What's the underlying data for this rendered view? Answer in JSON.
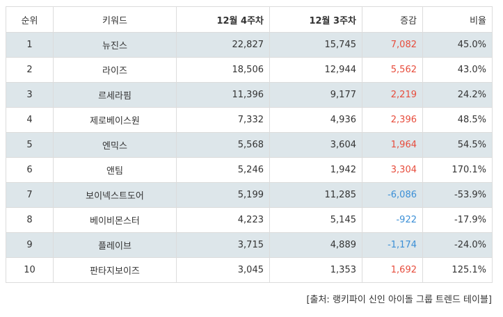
{
  "table": {
    "headers": {
      "rank": "순위",
      "keyword": "키워드",
      "week4": "12월 4주차",
      "week3": "12월 3주차",
      "change": "증감",
      "ratio": "비율"
    },
    "rows": [
      {
        "rank": "1",
        "keyword": "뉴진스",
        "week4": "22,827",
        "week3": "15,745",
        "change": "7,082",
        "ratio": "45.0%",
        "direction": "up"
      },
      {
        "rank": "2",
        "keyword": "라이즈",
        "week4": "18,506",
        "week3": "12,944",
        "change": "5,562",
        "ratio": "43.0%",
        "direction": "up"
      },
      {
        "rank": "3",
        "keyword": "르세라핌",
        "week4": "11,396",
        "week3": "9,177",
        "change": "2,219",
        "ratio": "24.2%",
        "direction": "up"
      },
      {
        "rank": "4",
        "keyword": "제로베이스원",
        "week4": "7,332",
        "week3": "4,936",
        "change": "2,396",
        "ratio": "48.5%",
        "direction": "up"
      },
      {
        "rank": "5",
        "keyword": "엔믹스",
        "week4": "5,568",
        "week3": "3,604",
        "change": "1,964",
        "ratio": "54.5%",
        "direction": "up"
      },
      {
        "rank": "6",
        "keyword": "앤팀",
        "week4": "5,246",
        "week3": "1,942",
        "change": "3,304",
        "ratio": "170.1%",
        "direction": "up"
      },
      {
        "rank": "7",
        "keyword": "보이넥스트도어",
        "week4": "5,199",
        "week3": "11,285",
        "change": "-6,086",
        "ratio": "-53.9%",
        "direction": "down"
      },
      {
        "rank": "8",
        "keyword": "베이비몬스터",
        "week4": "4,223",
        "week3": "5,145",
        "change": "-922",
        "ratio": "-17.9%",
        "direction": "down"
      },
      {
        "rank": "9",
        "keyword": "플레이브",
        "week4": "3,715",
        "week3": "4,889",
        "change": "-1,174",
        "ratio": "-24.0%",
        "direction": "down"
      },
      {
        "rank": "10",
        "keyword": "판타지보이즈",
        "week4": "3,045",
        "week3": "1,353",
        "change": "1,692",
        "ratio": "125.1%",
        "direction": "up"
      }
    ]
  },
  "source": "[출처: 랭키파이 신인 아이돌 그룹 트렌드 테이블]",
  "colors": {
    "positive": "#e74c3c",
    "negative": "#3b8fd6",
    "alt_row": "#dde6ea",
    "border": "#dcdcdc"
  }
}
